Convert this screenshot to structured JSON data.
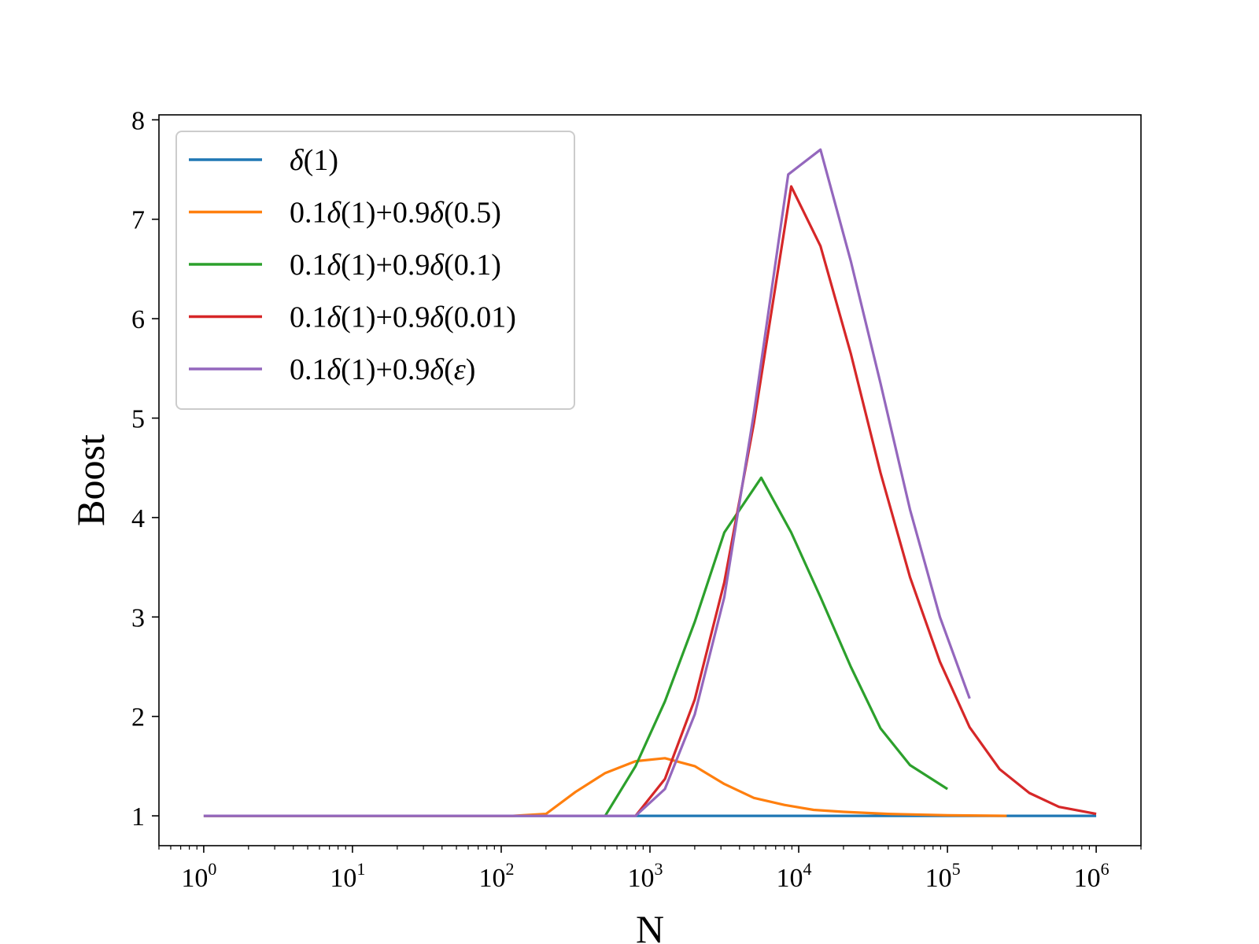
{
  "chart_data": {
    "type": "line",
    "title": "",
    "xlabel": "N",
    "ylabel": "Boost",
    "xscale": "log",
    "xlim": [
      0.5,
      2000000
    ],
    "ylim": [
      0.7,
      8.05
    ],
    "grid": false,
    "legend_position": "top-left",
    "x_ticks": [
      {
        "base": "10",
        "exp": "0",
        "value": 1
      },
      {
        "base": "10",
        "exp": "1",
        "value": 10
      },
      {
        "base": "10",
        "exp": "2",
        "value": 100
      },
      {
        "base": "10",
        "exp": "3",
        "value": 1000
      },
      {
        "base": "10",
        "exp": "4",
        "value": 10000
      },
      {
        "base": "10",
        "exp": "5",
        "value": 100000
      },
      {
        "base": "10",
        "exp": "6",
        "value": 1000000
      }
    ],
    "y_ticks": [
      {
        "label": "1",
        "value": 1
      },
      {
        "label": "2",
        "value": 2
      },
      {
        "label": "3",
        "value": 3
      },
      {
        "label": "4",
        "value": 4
      },
      {
        "label": "5",
        "value": 5
      },
      {
        "label": "6",
        "value": 6
      },
      {
        "label": "7",
        "value": 7
      },
      {
        "label": "8",
        "value": 8
      }
    ],
    "series": [
      {
        "name": "δ(1)",
        "legend_parts": [
          {
            "t": "δ",
            "i": true
          },
          {
            "t": "(1)",
            "i": false
          }
        ],
        "color": "#1f77b4",
        "points": [
          [
            1,
            1.0
          ],
          [
            1000000,
            1.0
          ]
        ]
      },
      {
        "name": "0.1δ(1)+0.9δ(0.5)",
        "legend_parts": [
          {
            "t": "0.1",
            "i": false
          },
          {
            "t": "δ",
            "i": true
          },
          {
            "t": "(1)+0.9",
            "i": false
          },
          {
            "t": "δ",
            "i": true
          },
          {
            "t": "(0.5)",
            "i": false
          }
        ],
        "color": "#ff7f0e",
        "points": [
          [
            1,
            1.0
          ],
          [
            120,
            1.0
          ],
          [
            200,
            1.02
          ],
          [
            316,
            1.24
          ],
          [
            500,
            1.43
          ],
          [
            800,
            1.55
          ],
          [
            1260,
            1.58
          ],
          [
            2000,
            1.5
          ],
          [
            3160,
            1.32
          ],
          [
            5000,
            1.18
          ],
          [
            8000,
            1.11
          ],
          [
            12600,
            1.06
          ],
          [
            20000,
            1.04
          ],
          [
            40000,
            1.02
          ],
          [
            100000,
            1.005
          ],
          [
            250000,
            1.0
          ]
        ]
      },
      {
        "name": "0.1δ(1)+0.9δ(0.1)",
        "legend_parts": [
          {
            "t": "0.1",
            "i": false
          },
          {
            "t": "δ",
            "i": true
          },
          {
            "t": "(1)+0.9",
            "i": false
          },
          {
            "t": "δ",
            "i": true
          },
          {
            "t": "(0.1)",
            "i": false
          }
        ],
        "color": "#2ca02c",
        "points": [
          [
            500,
            1.0
          ],
          [
            800,
            1.5
          ],
          [
            1260,
            2.15
          ],
          [
            2000,
            2.95
          ],
          [
            3160,
            3.85
          ],
          [
            5600,
            4.4
          ],
          [
            8900,
            3.85
          ],
          [
            14000,
            3.2
          ],
          [
            22400,
            2.5
          ],
          [
            35500,
            1.88
          ],
          [
            56000,
            1.51
          ],
          [
            100000,
            1.27
          ]
        ]
      },
      {
        "name": "0.1δ(1)+0.9δ(0.01)",
        "legend_parts": [
          {
            "t": "0.1",
            "i": false
          },
          {
            "t": "δ",
            "i": true
          },
          {
            "t": "(1)+0.9",
            "i": false
          },
          {
            "t": "δ",
            "i": true
          },
          {
            "t": "(0.01)",
            "i": false
          }
        ],
        "color": "#d62728",
        "points": [
          [
            800,
            1.0
          ],
          [
            1260,
            1.37
          ],
          [
            2000,
            2.17
          ],
          [
            3160,
            3.35
          ],
          [
            5000,
            4.95
          ],
          [
            8900,
            7.33
          ],
          [
            14000,
            6.73
          ],
          [
            22400,
            5.65
          ],
          [
            35500,
            4.45
          ],
          [
            56000,
            3.4
          ],
          [
            89000,
            2.55
          ],
          [
            141000,
            1.89
          ],
          [
            224000,
            1.47
          ],
          [
            355000,
            1.23
          ],
          [
            562000,
            1.09
          ],
          [
            1000000,
            1.02
          ]
        ]
      },
      {
        "name": "0.1δ(1)+0.9δ(ε)",
        "legend_parts": [
          {
            "t": "0.1",
            "i": false
          },
          {
            "t": "δ",
            "i": true
          },
          {
            "t": "(1)+0.9",
            "i": false
          },
          {
            "t": "δ",
            "i": true
          },
          {
            "t": "(",
            "i": false
          },
          {
            "t": "ε",
            "i": true
          },
          {
            "t": ")",
            "i": false
          }
        ],
        "color": "#9467bd",
        "points": [
          [
            1,
            1.0
          ],
          [
            800,
            1.0
          ],
          [
            1260,
            1.27
          ],
          [
            2000,
            2.02
          ],
          [
            3160,
            3.2
          ],
          [
            5000,
            5.05
          ],
          [
            8500,
            7.45
          ],
          [
            14000,
            7.7
          ],
          [
            22400,
            6.58
          ],
          [
            35500,
            5.35
          ],
          [
            56000,
            4.08
          ],
          [
            89000,
            3.0
          ],
          [
            141000,
            2.18
          ]
        ]
      }
    ]
  }
}
